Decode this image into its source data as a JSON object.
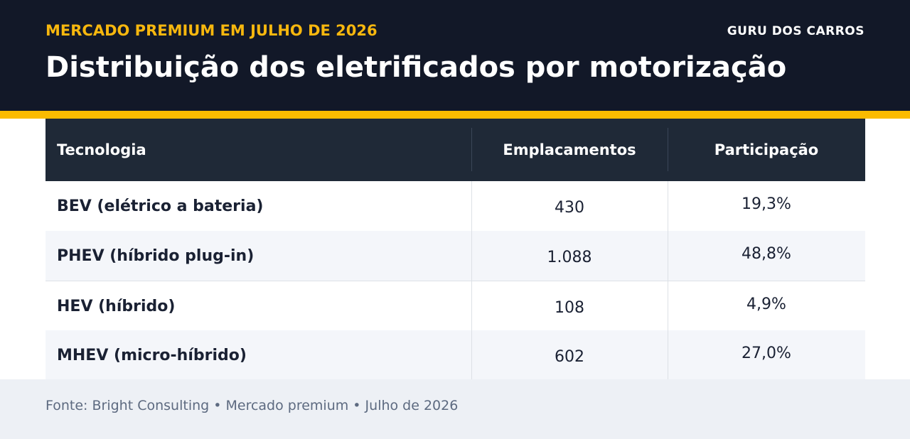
{
  "header": {
    "kicker": "MERCADO PREMIUM EM JULHO DE 2026",
    "brand": "GURU DOS CARROS",
    "title": "Distribuição dos eletrificados por motorização"
  },
  "colors": {
    "header_bg": "#121828",
    "accent": "#fbbb00",
    "kicker": "#f7b70e",
    "table_header_bg": "#1f2937",
    "row_alt_bg": "#f4f6fa",
    "footer_bg": "#edf0f5"
  },
  "chart_data": {
    "type": "table",
    "columns": [
      "Tecnologia",
      "Emplacamentos",
      "Participação"
    ],
    "rows": [
      [
        "BEV (elétrico a bateria)",
        "430",
        "19,3%"
      ],
      [
        "PHEV (híbrido plug-in)",
        "1.088",
        "48,8%"
      ],
      [
        "HEV (híbrido)",
        "108",
        "4,9%"
      ],
      [
        "MHEV (micro-híbrido)",
        "602",
        "27,0%"
      ]
    ]
  },
  "footer": {
    "source": "Fonte: Bright Consulting • Mercado premium • Julho de 2026"
  }
}
